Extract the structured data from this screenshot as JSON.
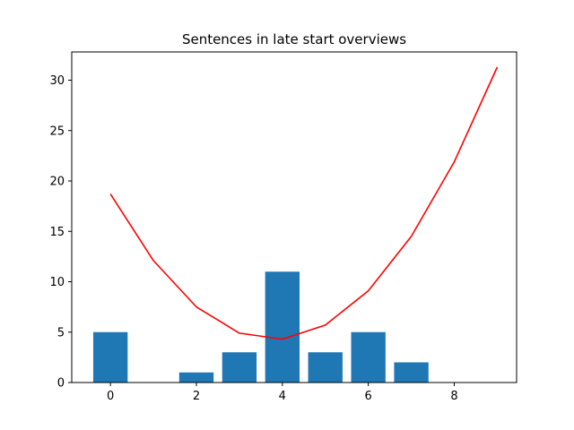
{
  "chart_data": {
    "type": "bar",
    "title": "Sentences in late start overviews",
    "xlabel": "",
    "ylabel": "",
    "xlim": [
      -0.9,
      9.45
    ],
    "ylim": [
      0,
      32.8
    ],
    "x_ticks": [
      0,
      2,
      4,
      6,
      8
    ],
    "y_ticks": [
      0,
      5,
      10,
      15,
      20,
      25,
      30
    ],
    "grid": false,
    "legend": "none",
    "bars": {
      "x": [
        0,
        1,
        2,
        3,
        4,
        5,
        6,
        7,
        8,
        9
      ],
      "values": [
        5,
        0,
        1,
        3,
        11,
        3,
        5,
        2,
        0,
        0
      ],
      "color": "#1f77b4"
    },
    "line": {
      "x": [
        0,
        1,
        2,
        3,
        4,
        5,
        6,
        7,
        8,
        9
      ],
      "values": [
        18.7,
        12.1,
        7.5,
        4.9,
        4.3,
        5.7,
        9.1,
        14.5,
        21.9,
        31.3
      ],
      "color": "#ff0000"
    }
  }
}
